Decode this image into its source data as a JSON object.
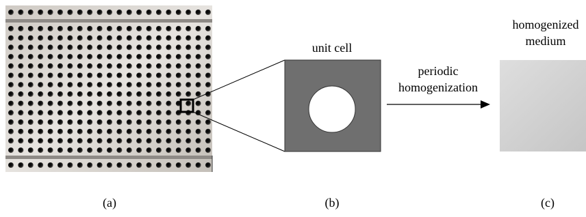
{
  "panels": {
    "b": {
      "title": "unit cell"
    },
    "arrow": {
      "line1": "periodic",
      "line2": "homogenization"
    },
    "c": {
      "line1": "homogenized",
      "line2": "medium"
    }
  },
  "captions": [
    "(a)",
    "(b)",
    "(c)"
  ]
}
